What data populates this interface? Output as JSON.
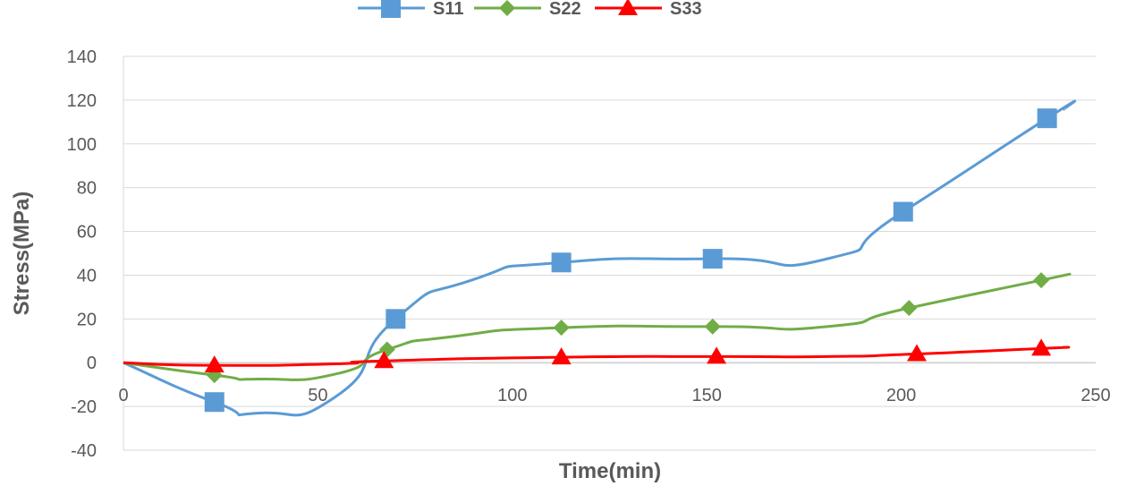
{
  "chart_data": {
    "type": "line",
    "title": "",
    "xlabel": "Time(min)",
    "ylabel": "Stress(MPa)",
    "xlim": [
      0,
      250
    ],
    "ylim": [
      -40,
      140
    ],
    "xticks": [
      0,
      50,
      100,
      150,
      200,
      250
    ],
    "yticks": [
      -40,
      -20,
      0,
      20,
      40,
      60,
      80,
      100,
      120,
      140
    ],
    "grid": "horizontal",
    "legend": "top-center",
    "series": [
      {
        "name": "S11",
        "color": "#5b9bd5",
        "marker": "square",
        "x": [
          0,
          23.4,
          35,
          55,
          70,
          90,
          112.6,
          151.5,
          181,
          200.5,
          237.5,
          242
        ],
        "y": [
          0,
          -18,
          -23,
          -15,
          20,
          38,
          45.8,
          47.5,
          47.5,
          69,
          111.7,
          116
        ],
        "marker_indices": [
          1,
          4,
          6,
          7,
          9,
          10
        ]
      },
      {
        "name": "S22",
        "color": "#70ad47",
        "marker": "diamond",
        "x": [
          0,
          23.4,
          35,
          55,
          67.8,
          85,
          112.6,
          151.5,
          181,
          202,
          236,
          242
        ],
        "y": [
          0,
          -5.7,
          -7.5,
          -5,
          6,
          12,
          16,
          16.5,
          16.5,
          25,
          37.7,
          40
        ],
        "marker_indices": [
          1,
          4,
          6,
          7,
          9,
          10
        ]
      },
      {
        "name": "S33",
        "color": "#ff0000",
        "marker": "triangle",
        "x": [
          0,
          23.4,
          55,
          67,
          112.6,
          152.5,
          181,
          204,
          236,
          242
        ],
        "y": [
          0,
          -1.2,
          -0.5,
          0.8,
          2.5,
          2.8,
          2.8,
          4,
          6.5,
          7
        ],
        "marker_indices": [
          1,
          3,
          4,
          5,
          7,
          8
        ]
      }
    ]
  }
}
